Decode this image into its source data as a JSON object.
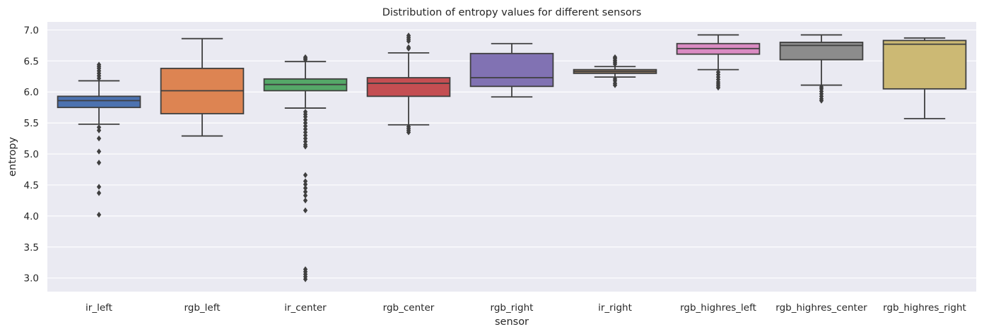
{
  "chart_data": {
    "type": "box",
    "title": "Distribution of entropy values for different sensors",
    "xlabel": "sensor",
    "ylabel": "entropy",
    "ylim": [
      2.78,
      7.13
    ],
    "yticks": [
      "3.0",
      "3.5",
      "4.0",
      "4.5",
      "5.0",
      "5.5",
      "6.0",
      "6.5",
      "7.0"
    ],
    "ytick_values": [
      3.0,
      3.5,
      4.0,
      4.5,
      5.0,
      5.5,
      6.0,
      6.5,
      7.0
    ],
    "grid": true,
    "background": "#eaeaf2",
    "categories": [
      "ir_left",
      "rgb_left",
      "ir_center",
      "rgb_center",
      "rgb_right",
      "ir_right",
      "rgb_highres_left",
      "rgb_highres_center",
      "rgb_highres_right"
    ],
    "boxes": [
      {
        "category": "ir_left",
        "color": "#4c72b0",
        "whisker_low": 5.48,
        "q1": 5.75,
        "median": 5.86,
        "q3": 5.93,
        "whisker_high": 6.18,
        "outliers": [
          6.22,
          6.26,
          6.3,
          6.34,
          6.38,
          6.41,
          6.44,
          5.43,
          5.38,
          5.25,
          5.04,
          4.86,
          4.47,
          4.37,
          4.02
        ]
      },
      {
        "category": "rgb_left",
        "color": "#dd8452",
        "whisker_low": 5.29,
        "q1": 5.65,
        "median": 6.02,
        "q3": 6.38,
        "whisker_high": 6.86,
        "outliers": []
      },
      {
        "category": "ir_center",
        "color": "#55a868",
        "whisker_low": 5.74,
        "q1": 6.02,
        "median": 6.12,
        "q3": 6.21,
        "whisker_high": 6.49,
        "outliers": [
          6.52,
          6.54,
          6.56,
          5.68,
          5.64,
          5.6,
          5.55,
          5.5,
          5.45,
          5.4,
          5.35,
          5.3,
          5.25,
          5.2,
          5.15,
          5.12,
          4.66,
          4.56,
          4.51,
          4.45,
          4.39,
          4.33,
          4.25,
          4.09,
          3.14,
          3.1,
          3.06,
          3.02,
          2.98
        ]
      },
      {
        "category": "rgb_center",
        "color": "#c44e52",
        "whisker_low": 5.47,
        "q1": 5.93,
        "median": 6.14,
        "q3": 6.23,
        "whisker_high": 6.63,
        "outliers": [
          6.7,
          6.72,
          6.82,
          6.85,
          6.88,
          6.91,
          5.44,
          5.41,
          5.38,
          5.35
        ]
      },
      {
        "category": "rgb_right",
        "color": "#8172b3",
        "whisker_low": 5.92,
        "q1": 6.09,
        "median": 6.23,
        "q3": 6.62,
        "whisker_high": 6.78,
        "outliers": []
      },
      {
        "category": "ir_right",
        "color": "#937860",
        "whisker_low": 6.24,
        "q1": 6.3,
        "median": 6.33,
        "q3": 6.36,
        "whisker_high": 6.41,
        "outliers": [
          6.45,
          6.48,
          6.51,
          6.54,
          6.56,
          6.21,
          6.18,
          6.14,
          6.11
        ]
      },
      {
        "category": "rgb_highres_left",
        "color": "#da8bc3",
        "whisker_low": 6.36,
        "q1": 6.61,
        "median": 6.7,
        "q3": 6.78,
        "whisker_high": 6.92,
        "outliers": [
          6.32,
          6.28,
          6.24,
          6.2,
          6.16,
          6.13,
          6.1,
          6.07
        ]
      },
      {
        "category": "rgb_highres_center",
        "color": "#8c8c8c",
        "whisker_low": 6.11,
        "q1": 6.52,
        "median": 6.75,
        "q3": 6.8,
        "whisker_high": 6.92,
        "outliers": [
          6.08,
          6.05,
          6.01,
          5.97,
          5.93,
          5.89,
          5.86
        ]
      },
      {
        "category": "rgb_highres_right",
        "color": "#ccb974",
        "whisker_low": 5.57,
        "q1": 6.05,
        "median": 6.77,
        "q3": 6.83,
        "whisker_high": 6.87,
        "outliers": []
      }
    ]
  }
}
